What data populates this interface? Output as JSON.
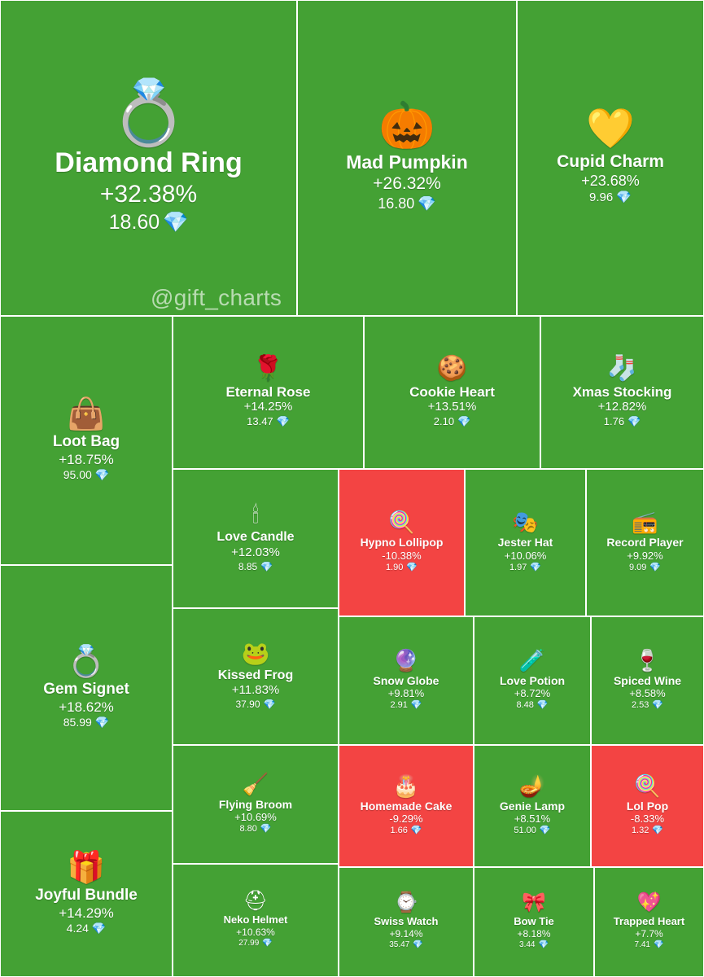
{
  "watermark": "@gift_charts",
  "currency_icon": "diamond-icon",
  "colors": {
    "positive": "#44a134",
    "negative": "#f34443",
    "border": "#ffffff",
    "text": "#ffffff"
  },
  "chart_data": {
    "type": "treemap",
    "items": [
      {
        "name": "Diamond Ring",
        "change": "+32.38%",
        "price": 18.6,
        "icon": "ring-box-icon"
      },
      {
        "name": "Mad Pumpkin",
        "change": "+26.32%",
        "price": 16.8,
        "icon": "pumpkin-icon"
      },
      {
        "name": "Cupid Charm",
        "change": "+23.68%",
        "price": 9.96,
        "icon": "heart-lock-icon"
      },
      {
        "name": "Loot Bag",
        "change": "+18.75%",
        "price": 95.0,
        "icon": "handbag-icon"
      },
      {
        "name": "Eternal Rose",
        "change": "+14.25%",
        "price": 13.47,
        "icon": "rose-icon"
      },
      {
        "name": "Cookie Heart",
        "change": "+13.51%",
        "price": 2.1,
        "icon": "cookie-icon"
      },
      {
        "name": "Xmas Stocking",
        "change": "+12.82%",
        "price": 1.76,
        "icon": "stocking-icon"
      },
      {
        "name": "Gem Signet",
        "change": "+18.62%",
        "price": 85.99,
        "icon": "gem-ring-icon"
      },
      {
        "name": "Love Candle",
        "change": "+12.03%",
        "price": 8.85,
        "icon": "candle-icon"
      },
      {
        "name": "Hypno Lollipop",
        "change": "-10.38%",
        "price": 1.9,
        "icon": "lollipop-icon"
      },
      {
        "name": "Jester Hat",
        "change": "+10.06%",
        "price": 1.97,
        "icon": "jester-hat-icon"
      },
      {
        "name": "Record Player",
        "change": "+9.92%",
        "price": 9.09,
        "icon": "record-player-icon"
      },
      {
        "name": "Kissed Frog",
        "change": "+11.83%",
        "price": 37.9,
        "icon": "frog-icon"
      },
      {
        "name": "Snow Globe",
        "change": "+9.81%",
        "price": 2.91,
        "icon": "snow-globe-icon"
      },
      {
        "name": "Love Potion",
        "change": "+8.72%",
        "price": 8.48,
        "icon": "potion-icon"
      },
      {
        "name": "Spiced Wine",
        "change": "+8.58%",
        "price": 2.53,
        "icon": "wine-icon"
      },
      {
        "name": "Joyful Bundle",
        "change": "+14.29%",
        "price": 4.24,
        "icon": "gift-box-icon"
      },
      {
        "name": "Flying Broom",
        "change": "+10.69%",
        "price": 8.8,
        "icon": "broom-icon"
      },
      {
        "name": "Homemade Cake",
        "change": "-9.29%",
        "price": 1.66,
        "icon": "cake-icon"
      },
      {
        "name": "Genie Lamp",
        "change": "+8.51%",
        "price": 51.0,
        "icon": "lamp-icon"
      },
      {
        "name": "Lol Pop",
        "change": "-8.33%",
        "price": 1.32,
        "icon": "lollipop-icon"
      },
      {
        "name": "Neko Helmet",
        "change": "+10.63%",
        "price": 27.99,
        "icon": "helmet-icon"
      },
      {
        "name": "Swiss Watch",
        "change": "+9.14%",
        "price": 35.47,
        "icon": "watch-icon"
      },
      {
        "name": "Bow Tie",
        "change": "+8.18%",
        "price": 3.44,
        "icon": "bow-tie-icon"
      },
      {
        "name": "Trapped Heart",
        "change": "+7.7%",
        "price": 7.41,
        "icon": "trapped-heart-icon"
      }
    ]
  }
}
